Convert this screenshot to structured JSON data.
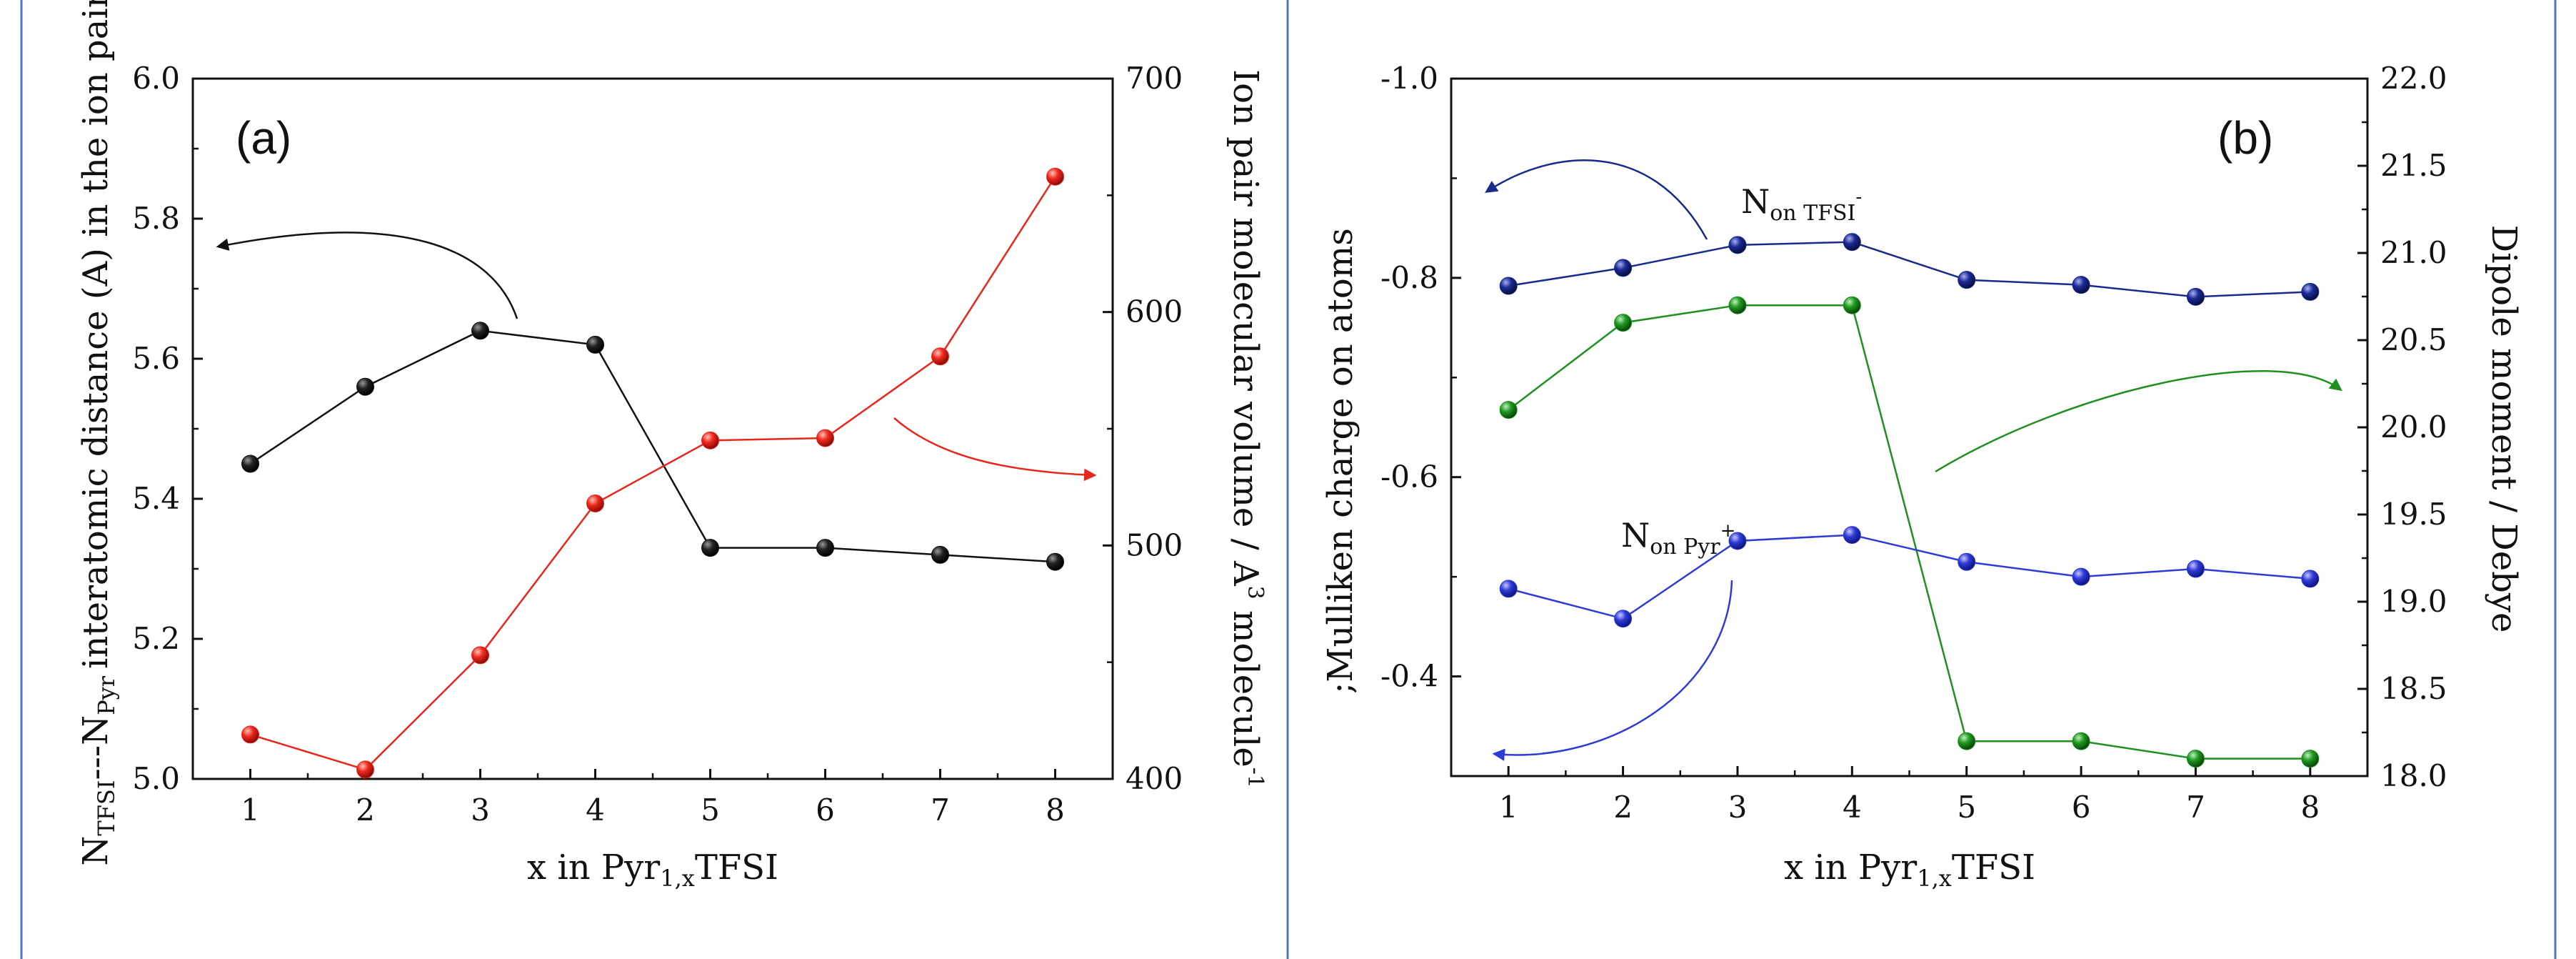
{
  "colors": {
    "frame": "#4a74c4",
    "black_series": "#111111",
    "red_series": "#e8261b",
    "navy_series": "#1a2a8c",
    "green_series": "#1f8f1f",
    "blue_series": "#2f3bd6"
  },
  "chart_data": [
    {
      "type": "line",
      "panel": "(a)",
      "title": "",
      "x": [
        1,
        2,
        3,
        4,
        5,
        6,
        7,
        8
      ],
      "xlabel_main": "x in Pyr",
      "xlabel_sub": "1,x",
      "xlabel_tail": "TFSI",
      "xlim": [
        0.5,
        8.5
      ],
      "x_ticks": [
        "1",
        "2",
        "3",
        "4",
        "5",
        "6",
        "7",
        "8"
      ],
      "ylabel_left": {
        "n1": "N",
        "n1_sub": "TFSI",
        "dash": "---",
        "n2": "N",
        "n2_sub": "Pyr",
        "rest": "interatomic distance (A) in the ion pair"
      },
      "ylim_left": [
        5.0,
        6.0
      ],
      "y_ticks_left": [
        "5.0",
        "5.2",
        "5.4",
        "5.6",
        "5.8",
        "6.0"
      ],
      "ylabel_right": {
        "main": "Ion pair molecular volume / A",
        "sup": "3",
        "mid": " molecule",
        "sup2": "-1"
      },
      "ylim_right": [
        400,
        700
      ],
      "y_ticks_right": [
        "400",
        "500",
        "600",
        "700"
      ],
      "series": [
        {
          "name": "N---N distance",
          "axis": "left",
          "color": "black",
          "values": [
            5.45,
            5.56,
            5.64,
            5.62,
            5.33,
            5.33,
            5.32,
            5.31
          ]
        },
        {
          "name": "Ion pair molecular volume",
          "axis": "right",
          "color": "red",
          "values": [
            419,
            404,
            453,
            518,
            545,
            546,
            581,
            658
          ]
        }
      ]
    },
    {
      "type": "line",
      "panel": "(b)",
      "title": "",
      "x": [
        1,
        2,
        3,
        4,
        5,
        6,
        7,
        8
      ],
      "xlabel_main": "x in Pyr",
      "xlabel_sub": "1,x",
      "xlabel_tail": "TFSI",
      "xlim": [
        0.5,
        8.5
      ],
      "x_ticks": [
        "1",
        "2",
        "3",
        "4",
        "5",
        "6",
        "7",
        "8"
      ],
      "ylabel_left": ";Mulliken charge on atoms",
      "ylim_left": [
        -0.3,
        -1.0
      ],
      "y_ticks_left": [
        "-0.4",
        "-0.6",
        "-0.8",
        "-1.0"
      ],
      "ylabel_right": "Dipole moment / Debye",
      "ylim_right": [
        18.0,
        22.0
      ],
      "y_ticks_right": [
        "18.0",
        "18.5",
        "19.0",
        "19.5",
        "20.0",
        "20.5",
        "21.0",
        "21.5",
        "22.0"
      ],
      "annotations": [
        {
          "label": "N",
          "sub": "on TFSI",
          "sup": "-"
        },
        {
          "label": "N",
          "sub": "on Pyr",
          "sup": "+"
        }
      ],
      "series": [
        {
          "name": "N on TFSI-",
          "axis": "left",
          "color": "navy",
          "values": [
            -0.792,
            -0.81,
            -0.833,
            -0.836,
            -0.798,
            -0.793,
            -0.781,
            -0.786
          ]
        },
        {
          "name": "Dipole moment",
          "axis": "right",
          "color": "green",
          "values": [
            20.1,
            20.6,
            20.7,
            20.7,
            18.2,
            18.2,
            18.1,
            18.1
          ]
        },
        {
          "name": "N on Pyr+",
          "axis": "left",
          "color": "blue",
          "values": [
            -0.488,
            -0.458,
            -0.536,
            -0.542,
            -0.515,
            -0.5,
            -0.508,
            -0.498
          ]
        }
      ]
    }
  ]
}
